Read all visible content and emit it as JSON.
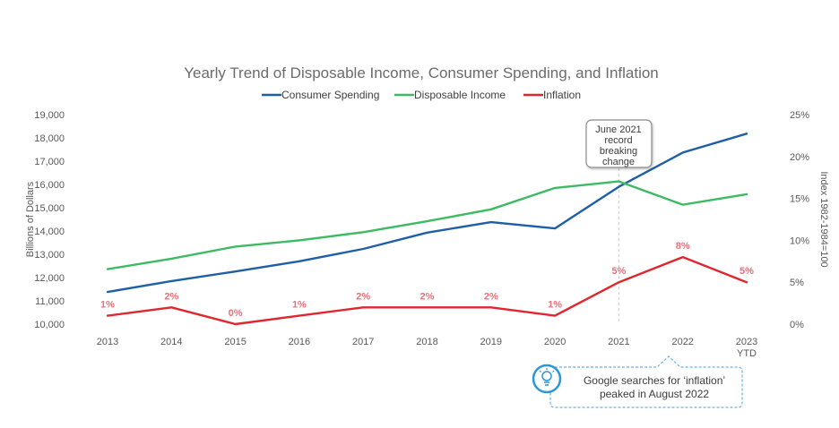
{
  "chart_data": {
    "type": "line",
    "title": "Yearly Trend of Disposable Income, Consumer Spending, and Inflation",
    "categories": [
      "2013",
      "2014",
      "2015",
      "2016",
      "2017",
      "2018",
      "2019",
      "2020",
      "2021",
      "2022",
      "2023"
    ],
    "category_sublabels": [
      "",
      "",
      "",
      "",
      "",
      "",
      "",
      "",
      "",
      "",
      "YTD"
    ],
    "ylabel": "Billions of Dollars",
    "ylim": [
      10000,
      19000
    ],
    "yticks": [
      "10,000",
      "11,000",
      "12,000",
      "13,000",
      "14,000",
      "15,000",
      "16,000",
      "17,000",
      "18,000",
      "19,000"
    ],
    "y2label": "Index 1982-1984=100",
    "y2lim": [
      0,
      25
    ],
    "y2ticks": [
      "0%",
      "5%",
      "10%",
      "15%",
      "20%",
      "25%"
    ],
    "grid": false,
    "legend_position": "top",
    "series": [
      {
        "name": "Consumer Spending",
        "axis": "left",
        "color": "#1f5fa8",
        "values": [
          11380,
          11850,
          12260,
          12700,
          13230,
          13930,
          14380,
          14110,
          15900,
          17370,
          18180
        ]
      },
      {
        "name": "Disposable Income",
        "axis": "left",
        "color": "#3dbb63",
        "values": [
          12360,
          12810,
          13330,
          13600,
          13950,
          14420,
          14930,
          15850,
          16130,
          15130,
          15580
        ]
      },
      {
        "name": "Inflation",
        "axis": "right",
        "color": "#e0262f",
        "values": [
          1,
          2,
          0,
          1,
          2,
          2,
          2,
          1,
          5,
          8,
          5
        ],
        "labels": [
          "1%",
          "2%",
          "0%",
          "1%",
          "2%",
          "2%",
          "2%",
          "1%",
          "5%",
          "8%",
          "5%"
        ]
      }
    ],
    "annotations": [
      {
        "text": "June 2021 record breaking change",
        "lines": [
          "June 2021",
          "record",
          "breaking",
          "change"
        ],
        "at_category": "2021"
      },
      {
        "text": "Google searches for 'inflation' peaked in August 2022",
        "lines": [
          "Google searches for ‘inflation’",
          "peaked in August 2022"
        ],
        "icon": "lightbulb-icon",
        "at_category": "2022"
      }
    ]
  }
}
